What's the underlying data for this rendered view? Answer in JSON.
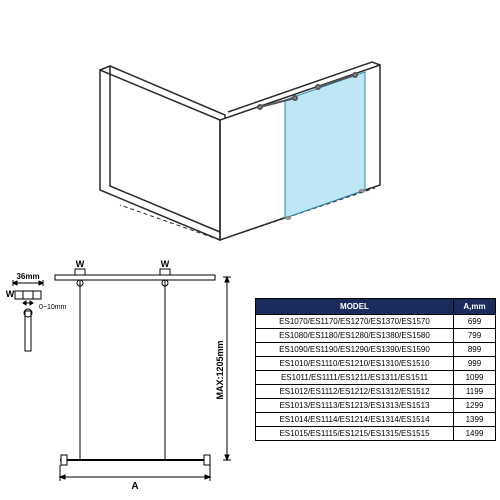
{
  "iso": {
    "wall_line_color": "#2b2b2b",
    "glass_fill": "#bfe6f5",
    "glass_stroke": "#2b8fb3"
  },
  "tech": {
    "line_color": "#000000",
    "label_36": "36mm",
    "label_010": "0~10mm",
    "label_W": "W",
    "label_max": "MAX:1205mm",
    "label_A": "A"
  },
  "table": {
    "headers": {
      "model": "MODEL",
      "a": "A,mm"
    },
    "header_bg": "#1a2b5c",
    "rows": [
      {
        "model": "ES1070/ES1170/ES1270/ES1370/ES1570",
        "a": "699"
      },
      {
        "model": "ES1080/ES1180/ES1280/ES1380/ES1580",
        "a": "799"
      },
      {
        "model": "ES1090/ES1190/ES1290/ES1390/ES1590",
        "a": "899"
      },
      {
        "model": "ES1010/ES1110/ES1210/ES1310/ES1510",
        "a": "999"
      },
      {
        "model": "ES1011/ES1111/ES1211/ES1311/ES1511",
        "a": "1099"
      },
      {
        "model": "ES1012/ES1112/ES1212/ES1312/ES1512",
        "a": "1199"
      },
      {
        "model": "ES1013/ES1113/ES1213/ES1313/ES1513",
        "a": "1299"
      },
      {
        "model": "ES1014/ES1114/ES1214/ES1314/ES1514",
        "a": "1399"
      },
      {
        "model": "ES1015/ES1115/ES1215/ES1315/ES1515",
        "a": "1499"
      }
    ]
  }
}
